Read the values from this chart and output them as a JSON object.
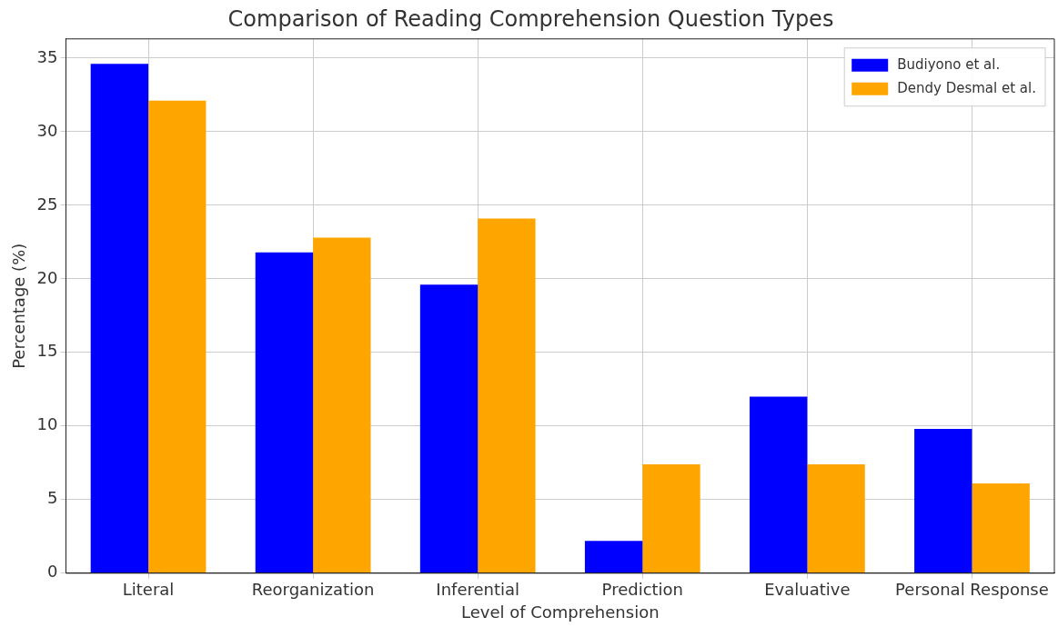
{
  "chart_data": {
    "type": "bar",
    "title": "Comparison of Reading Comprehension Question Types",
    "xlabel": "Level of Comprehension",
    "ylabel": "Percentage (%)",
    "categories": [
      "Literal",
      "Reorganization",
      "Inferential",
      "Prediction",
      "Evaluative",
      "Personal Response"
    ],
    "series": [
      {
        "name": "Budiyono et al.",
        "color": "#0000ff",
        "values": [
          34.6,
          21.8,
          19.6,
          2.2,
          12.0,
          9.8
        ]
      },
      {
        "name": "Dendy Desmal et al.",
        "color": "#ffa500",
        "values": [
          32.1,
          22.8,
          24.1,
          7.4,
          7.4,
          6.1
        ]
      }
    ],
    "ylim": [
      0,
      36.3
    ],
    "yticks": [
      0,
      5,
      10,
      15,
      20,
      25,
      30,
      35
    ],
    "grid": true,
    "legend": "top right"
  }
}
